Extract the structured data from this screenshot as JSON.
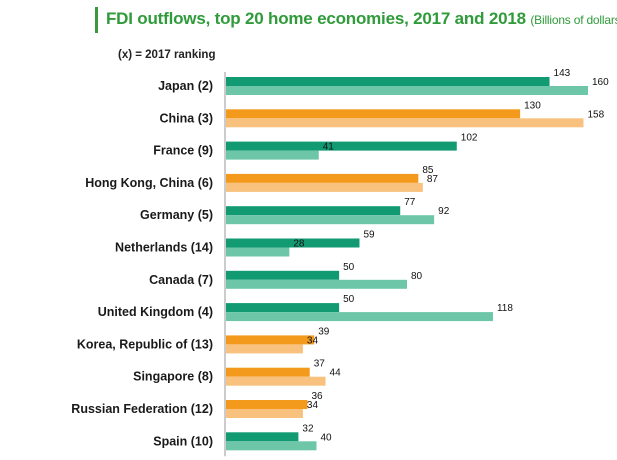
{
  "title": "FDI outflows, top 20 home economies, 2017 and 2018",
  "subtitle": "(Billions of dollars)",
  "ranking_note": "(x) = 2017 ranking",
  "colors": {
    "green_2017": "#129b73",
    "green_2018": "#6dc6a8",
    "orange_2017": "#f39a1d",
    "orange_2018": "#f8c27e",
    "title": "#2f9b3a"
  },
  "chart_data": {
    "type": "bar",
    "orientation": "horizontal",
    "title": "FDI outflows, top 20 home economies, 2017 and 2018",
    "subtitle": "(Billions of dollars)",
    "xlim": [
      0,
      160
    ],
    "categories": [
      "Japan (2)",
      "China (3)",
      "France (9)",
      "Hong Kong, China (6)",
      "Germany (5)",
      "Netherlands (14)",
      "Canada (7)",
      "United Kingdom (4)",
      "Korea, Republic of (13)",
      "Singapore (8)",
      "Russian Federation (12)",
      "Spain (10)"
    ],
    "series": [
      {
        "values": [
          143,
          130,
          102,
          85,
          77,
          59,
          50,
          50,
          39,
          37,
          36,
          32
        ]
      },
      {
        "values": [
          160,
          158,
          41,
          87,
          92,
          28,
          80,
          118,
          34,
          44,
          34,
          40
        ]
      }
    ],
    "bar_color_group": [
      "green",
      "orange",
      "green",
      "orange",
      "green",
      "green",
      "green",
      "green",
      "orange",
      "orange",
      "orange",
      "green"
    ]
  }
}
